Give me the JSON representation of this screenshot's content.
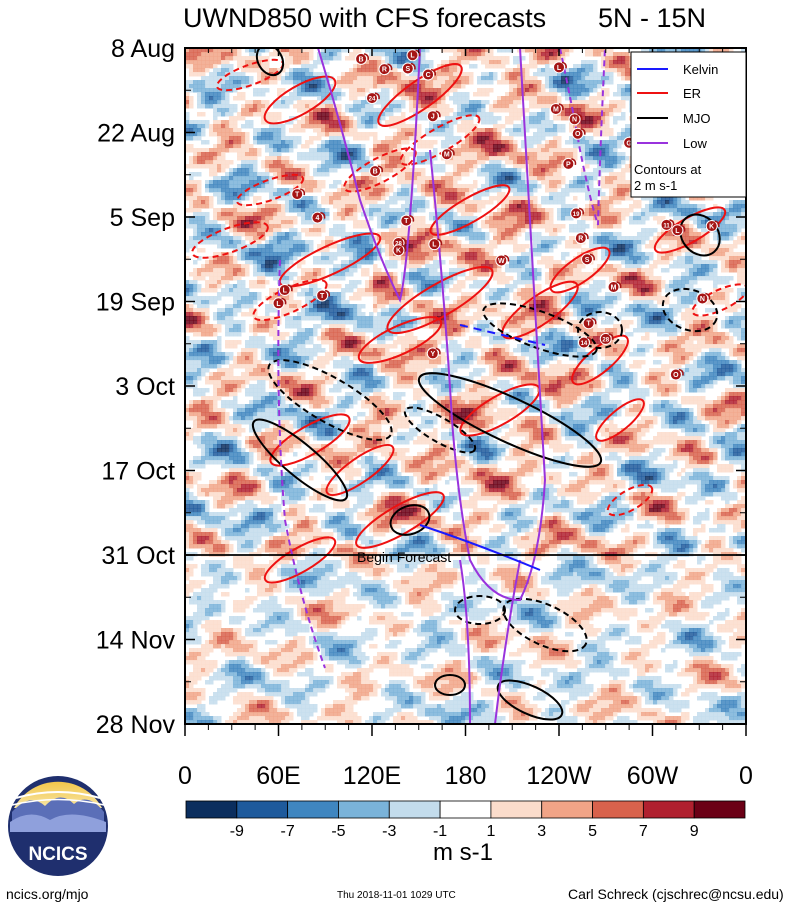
{
  "title_left": "UWND850 with CFS forecasts",
  "title_right": "5N - 15N",
  "chart_data": {
    "type": "heatmap",
    "variable": "UWND850",
    "region": "5N - 15N",
    "y_tick_labels": [
      "8 Aug",
      "22 Aug",
      "5 Sep",
      "19 Sep",
      "3 Oct",
      "17 Oct",
      "31 Oct",
      "14 Nov",
      "28 Nov"
    ],
    "x_tick_labels": [
      "0",
      "60E",
      "120E",
      "180",
      "120W",
      "60W",
      "0"
    ],
    "x_tick_degrees": [
      0,
      60,
      120,
      180,
      240,
      300,
      360
    ],
    "y_range_days": [
      0,
      112
    ],
    "forecast_start_day": 84,
    "forecast_label": "Begin Forecast",
    "colorbar": {
      "labels": [
        "-9",
        "-7",
        "-5",
        "-3",
        "-1",
        "1",
        "3",
        "5",
        "7",
        "9"
      ],
      "unit": "m s-1",
      "colors": [
        "#0b2e5e",
        "#1e5a9c",
        "#3f86c0",
        "#7ab3d9",
        "#c3dcec",
        "#ffffff",
        "#fbdccb",
        "#f1a487",
        "#d8624c",
        "#b0202f",
        "#6b0016"
      ]
    },
    "legend": [
      {
        "name": "Kelvin",
        "color": "#1a1aff"
      },
      {
        "name": "ER",
        "color": "#ee1111"
      },
      {
        "name": "MJO",
        "color": "#000000"
      },
      {
        "name": "Low",
        "color": "#9933dd"
      }
    ],
    "contour_note": "Contours at 2 m s-1",
    "cyclones": [
      {
        "label": "B",
        "lon": 113,
        "day": 1.8
      },
      {
        "label": "L",
        "lon": 146,
        "day": 1.2
      },
      {
        "label": "R",
        "lon": 128,
        "day": 3.5
      },
      {
        "label": "S",
        "lon": 143,
        "day": 3.4
      },
      {
        "label": "C",
        "lon": 156,
        "day": 4.4
      },
      {
        "label": "L",
        "lon": 240,
        "day": 3.2
      },
      {
        "label": "24",
        "lon": 120,
        "day": 8.3
      },
      {
        "label": "J",
        "lon": 159,
        "day": 11.3
      },
      {
        "label": "M",
        "lon": 238,
        "day": 10.1
      },
      {
        "label": "N",
        "lon": 250,
        "day": 11.8
      },
      {
        "label": "O",
        "lon": 252,
        "day": 14.2
      },
      {
        "label": "G",
        "lon": 285,
        "day": 15.7
      },
      {
        "label": "M",
        "lon": 168,
        "day": 17.6
      },
      {
        "label": "P",
        "lon": 246,
        "day": 19.2
      },
      {
        "label": "I",
        "lon": 326,
        "day": 19.2
      },
      {
        "label": "H",
        "lon": 344,
        "day": 18.7
      },
      {
        "label": "B",
        "lon": 122,
        "day": 20.4
      },
      {
        "label": "J",
        "lon": 320,
        "day": 22.8
      },
      {
        "label": "T",
        "lon": 72,
        "day": 24.2
      },
      {
        "label": "19",
        "lon": 251,
        "day": 27.4
      },
      {
        "label": "4",
        "lon": 85,
        "day": 28.1
      },
      {
        "label": "T",
        "lon": 142,
        "day": 28.6
      },
      {
        "label": "11",
        "lon": 309,
        "day": 29.3
      },
      {
        "label": "L",
        "lon": 316,
        "day": 30.2
      },
      {
        "label": "K",
        "lon": 338,
        "day": 29.5
      },
      {
        "label": "28",
        "lon": 137,
        "day": 32.3
      },
      {
        "label": "L",
        "lon": 160,
        "day": 32.5
      },
      {
        "label": "K",
        "lon": 137,
        "day": 33.5
      },
      {
        "label": "R",
        "lon": 254,
        "day": 31.5
      },
      {
        "label": "W",
        "lon": 203,
        "day": 35.2
      },
      {
        "label": "S",
        "lon": 258,
        "day": 35.0
      },
      {
        "label": "L",
        "lon": 64,
        "day": 40.1
      },
      {
        "label": "T",
        "lon": 88,
        "day": 41.0
      },
      {
        "label": "M",
        "lon": 275,
        "day": 39.6
      },
      {
        "label": "N",
        "lon": 332,
        "day": 41.5
      },
      {
        "label": "L",
        "lon": 60,
        "day": 42.3
      },
      {
        "label": "T",
        "lon": 259,
        "day": 45.6
      },
      {
        "label": "14",
        "lon": 256,
        "day": 48.8
      },
      {
        "label": "28",
        "lon": 270,
        "day": 48.2
      },
      {
        "label": "Y",
        "lon": 159,
        "day": 50.6
      },
      {
        "label": "O",
        "lon": 315,
        "day": 54.1
      }
    ]
  },
  "logo_text": "NCICS",
  "footer": {
    "url": "ncics.org/mjo",
    "timestamp": "Thu 2018-11-01 1029 UTC",
    "author": "Carl Schreck (cjschrec@ncsu.edu)"
  }
}
